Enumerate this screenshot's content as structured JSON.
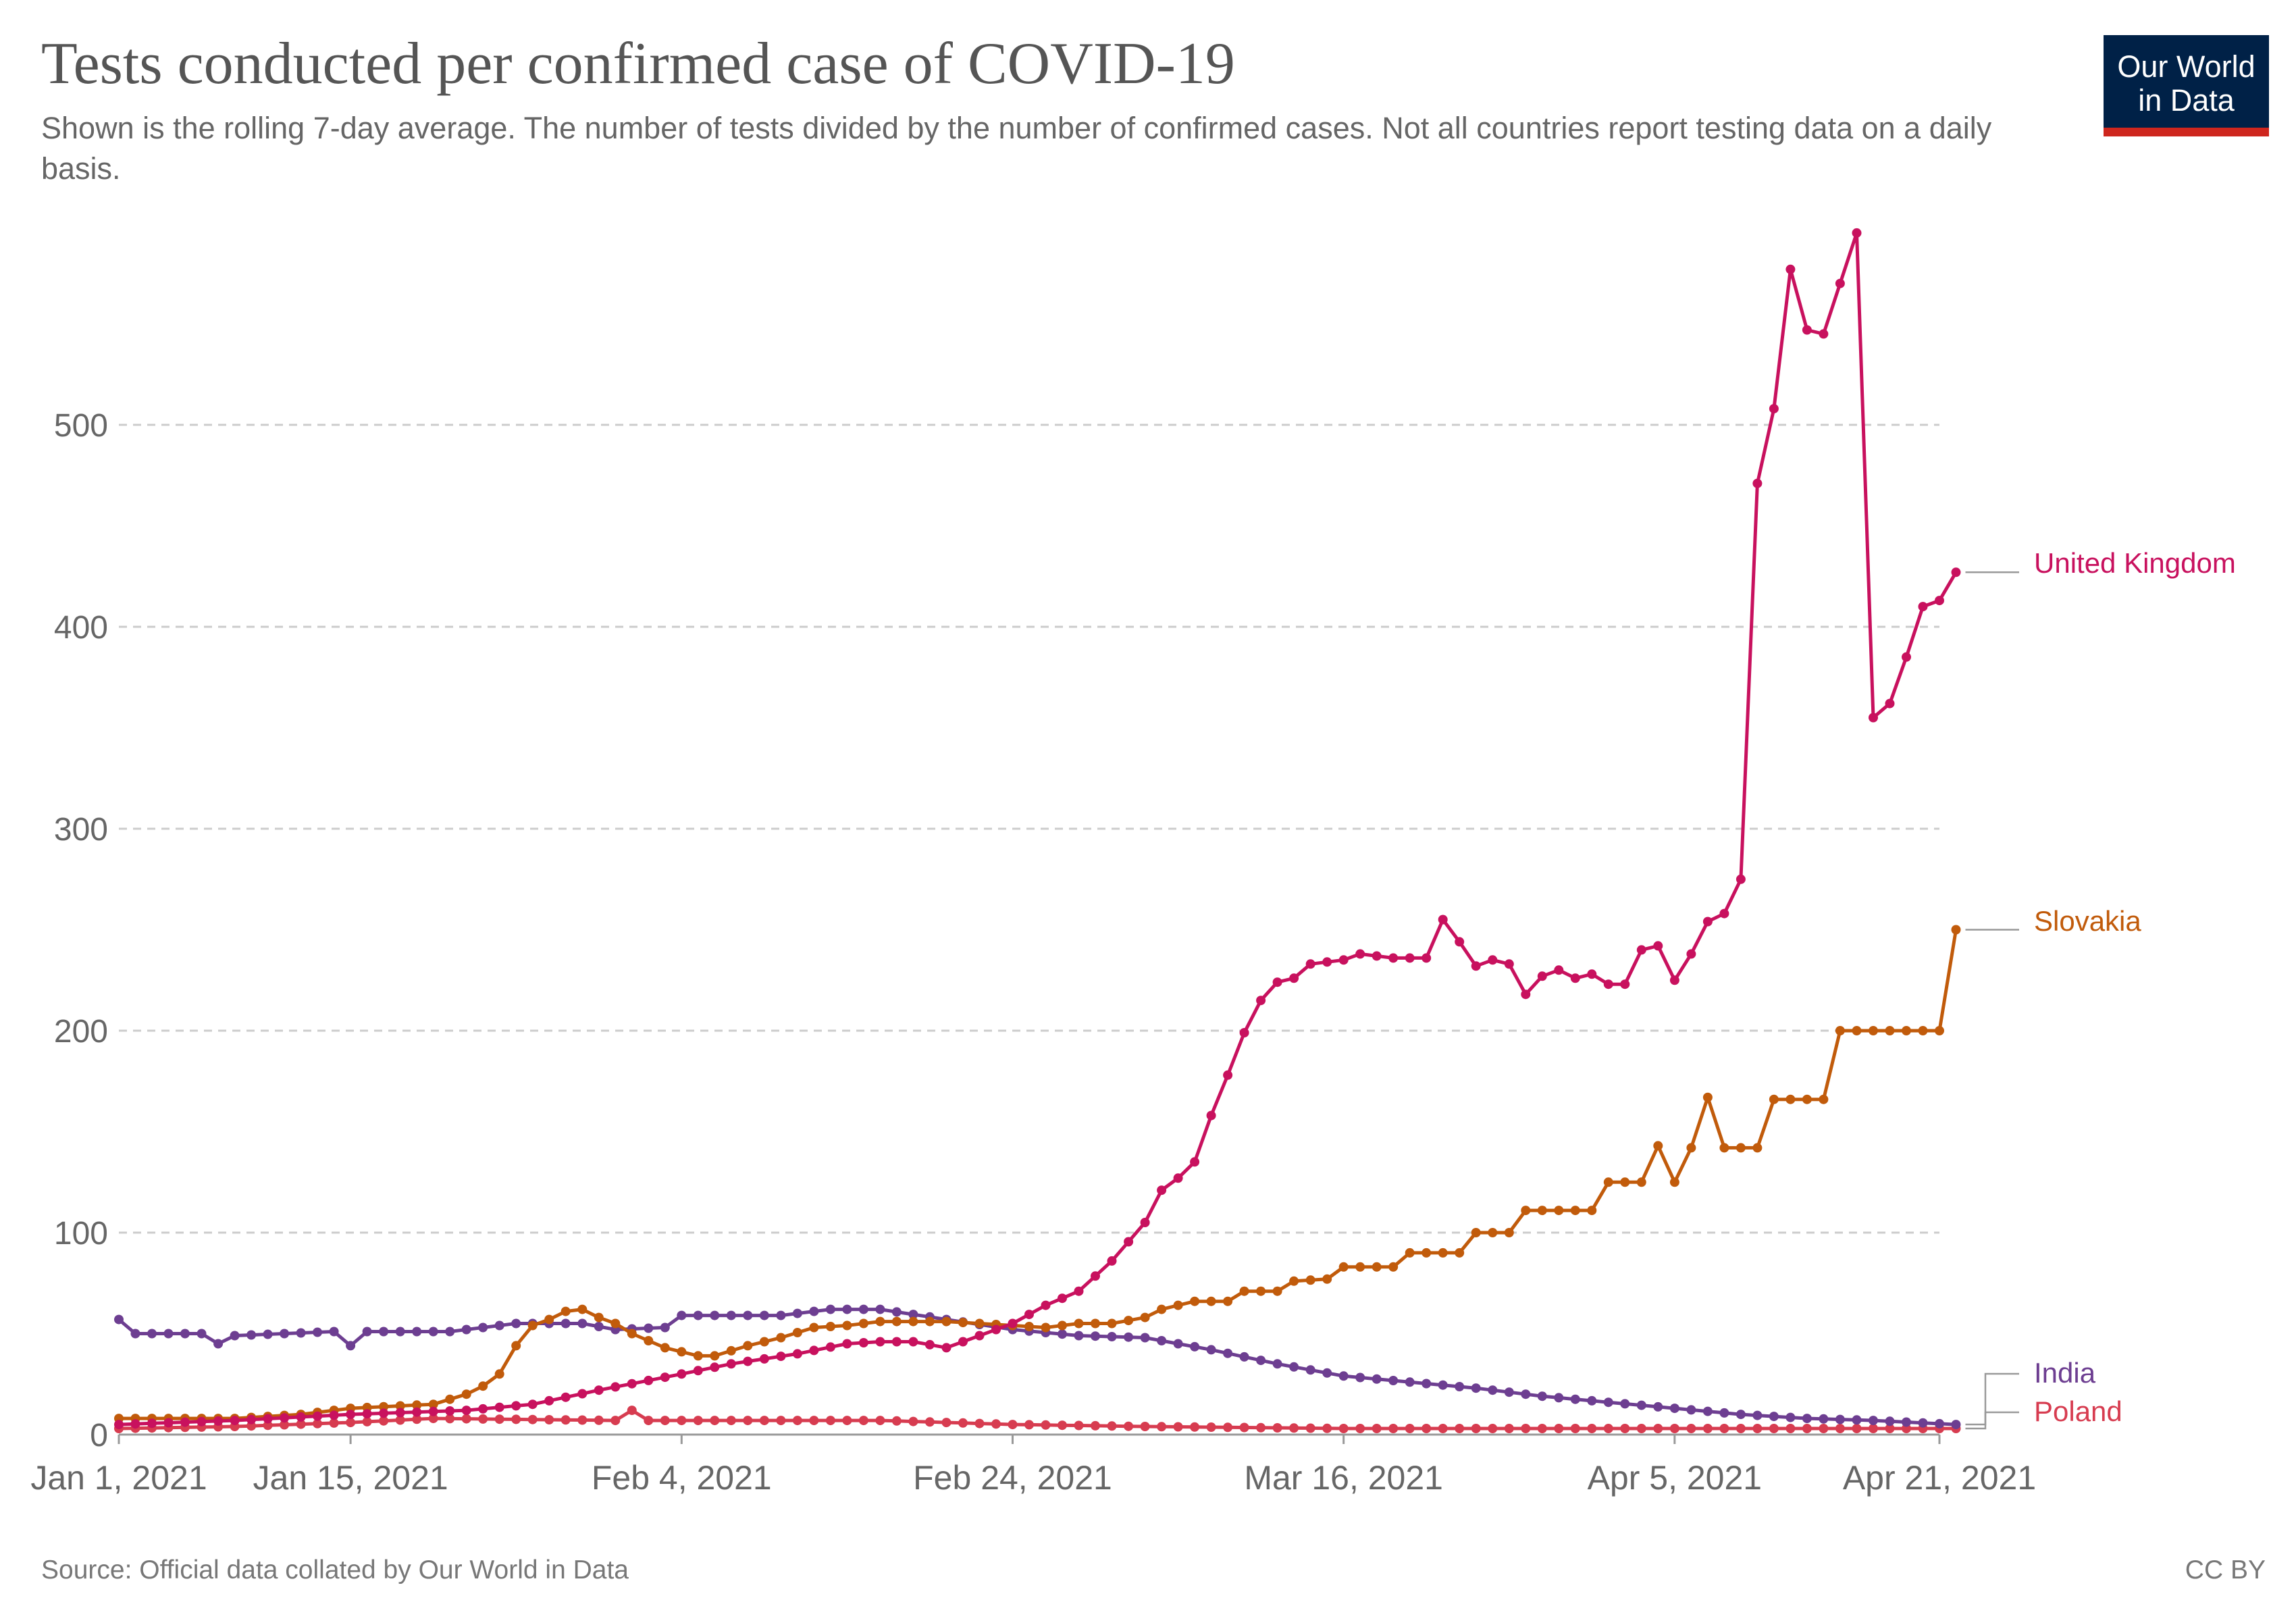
{
  "title": "Tests conducted per confirmed case of COVID-19",
  "subtitle": "Shown is the rolling 7-day average. The number of tests divided by the number of confirmed cases. Not all countries report testing data on a daily basis.",
  "logo": {
    "line1": "Our World",
    "line2": "in Data"
  },
  "source": "Source: Official data collated by Our World in Data",
  "license": "CC BY",
  "chart_data": {
    "type": "line",
    "x_start": "2021-01-01",
    "x_end": "2021-04-21",
    "ylim": [
      0,
      600
    ],
    "yticks": [
      0,
      100,
      200,
      300,
      400,
      500
    ],
    "ytick_labels": [
      "0",
      "100",
      "200",
      "300",
      "400",
      "500"
    ],
    "xticks": [
      {
        "date": "2021-01-01",
        "label": "Jan 1, 2021"
      },
      {
        "date": "2021-01-15",
        "label": "Jan 15, 2021"
      },
      {
        "date": "2021-02-04",
        "label": "Feb 4, 2021"
      },
      {
        "date": "2021-02-24",
        "label": "Feb 24, 2021"
      },
      {
        "date": "2021-03-16",
        "label": "Mar 16, 2021"
      },
      {
        "date": "2021-04-05",
        "label": "Apr 5, 2021"
      },
      {
        "date": "2021-04-21",
        "label": "Apr 21, 2021"
      }
    ],
    "grid": "horizontal-dashed",
    "legend": "right-end-labels",
    "series": [
      {
        "name": "United Kingdom",
        "color": "#c8115e",
        "points": [
          [
            "2021-01-01",
            5
          ],
          [
            "2021-01-08",
            7
          ],
          [
            "2021-01-15",
            10
          ],
          [
            "2021-01-22",
            12
          ],
          [
            "2021-01-26",
            15
          ],
          [
            "2021-01-30",
            22
          ],
          [
            "2021-02-04",
            30
          ],
          [
            "2021-02-07",
            35
          ],
          [
            "2021-02-11",
            40
          ],
          [
            "2021-02-14",
            45
          ],
          [
            "2021-02-16",
            46
          ],
          [
            "2021-02-18",
            46
          ],
          [
            "2021-02-20",
            43
          ],
          [
            "2021-02-22",
            49
          ],
          [
            "2021-02-24",
            55
          ],
          [
            "2021-02-26",
            64
          ],
          [
            "2021-02-28",
            71
          ],
          [
            "2021-03-02",
            86
          ],
          [
            "2021-03-04",
            105
          ],
          [
            "2021-03-05",
            121
          ],
          [
            "2021-03-06",
            127
          ],
          [
            "2021-03-07",
            135
          ],
          [
            "2021-03-08",
            158
          ],
          [
            "2021-03-09",
            178
          ],
          [
            "2021-03-10",
            199
          ],
          [
            "2021-03-11",
            215
          ],
          [
            "2021-03-12",
            224
          ],
          [
            "2021-03-13",
            226
          ],
          [
            "2021-03-14",
            233
          ],
          [
            "2021-03-16",
            235
          ],
          [
            "2021-03-17",
            238
          ],
          [
            "2021-03-19",
            236
          ],
          [
            "2021-03-21",
            236
          ],
          [
            "2021-03-22",
            255
          ],
          [
            "2021-03-23",
            244
          ],
          [
            "2021-03-24",
            232
          ],
          [
            "2021-03-25",
            235
          ],
          [
            "2021-03-26",
            233
          ],
          [
            "2021-03-27",
            218
          ],
          [
            "2021-03-28",
            227
          ],
          [
            "2021-03-29",
            230
          ],
          [
            "2021-03-30",
            226
          ],
          [
            "2021-03-31",
            228
          ],
          [
            "2021-04-01",
            223
          ],
          [
            "2021-04-02",
            223
          ],
          [
            "2021-04-03",
            240
          ],
          [
            "2021-04-04",
            242
          ],
          [
            "2021-04-05",
            225
          ],
          [
            "2021-04-06",
            238
          ],
          [
            "2021-04-07",
            254
          ],
          [
            "2021-04-08",
            258
          ],
          [
            "2021-04-09",
            275
          ],
          [
            "2021-04-10",
            471
          ],
          [
            "2021-04-11",
            508
          ],
          [
            "2021-04-12",
            577
          ],
          [
            "2021-04-13",
            547
          ],
          [
            "2021-04-14",
            545
          ],
          [
            "2021-04-15",
            570
          ],
          [
            "2021-04-16",
            595
          ],
          [
            "2021-04-17",
            355
          ],
          [
            "2021-04-18",
            362
          ],
          [
            "2021-04-19",
            385
          ],
          [
            "2021-04-20",
            410
          ],
          [
            "2021-04-21",
            413
          ],
          [
            "2021-04-22",
            427
          ]
        ]
      },
      {
        "name": "Slovakia",
        "color": "#c15b0b",
        "points": [
          [
            "2021-01-01",
            8
          ],
          [
            "2021-01-08",
            8
          ],
          [
            "2021-01-12",
            10
          ],
          [
            "2021-01-15",
            13
          ],
          [
            "2021-01-20",
            15
          ],
          [
            "2021-01-22",
            20
          ],
          [
            "2021-01-23",
            24
          ],
          [
            "2021-01-24",
            30
          ],
          [
            "2021-01-25",
            44
          ],
          [
            "2021-01-26",
            54
          ],
          [
            "2021-01-27",
            57
          ],
          [
            "2021-01-28",
            61
          ],
          [
            "2021-01-29",
            62
          ],
          [
            "2021-01-30",
            58
          ],
          [
            "2021-01-31",
            55
          ],
          [
            "2021-02-01",
            50
          ],
          [
            "2021-02-03",
            43
          ],
          [
            "2021-02-05",
            39
          ],
          [
            "2021-02-06",
            39
          ],
          [
            "2021-02-08",
            44
          ],
          [
            "2021-02-10",
            48
          ],
          [
            "2021-02-12",
            53
          ],
          [
            "2021-02-14",
            54
          ],
          [
            "2021-02-16",
            56
          ],
          [
            "2021-02-20",
            56
          ],
          [
            "2021-02-24",
            54
          ],
          [
            "2021-02-26",
            53
          ],
          [
            "2021-02-28",
            55
          ],
          [
            "2021-03-02",
            55
          ],
          [
            "2021-03-04",
            58
          ],
          [
            "2021-03-05",
            62
          ],
          [
            "2021-03-07",
            66
          ],
          [
            "2021-03-09",
            66
          ],
          [
            "2021-03-10",
            71
          ],
          [
            "2021-03-12",
            71
          ],
          [
            "2021-03-13",
            76
          ],
          [
            "2021-03-15",
            77
          ],
          [
            "2021-03-16",
            83
          ],
          [
            "2021-03-19",
            83
          ],
          [
            "2021-03-20",
            90
          ],
          [
            "2021-03-23",
            90
          ],
          [
            "2021-03-24",
            100
          ],
          [
            "2021-03-26",
            100
          ],
          [
            "2021-03-27",
            111
          ],
          [
            "2021-03-31",
            111
          ],
          [
            "2021-04-01",
            125
          ],
          [
            "2021-04-03",
            125
          ],
          [
            "2021-04-04",
            143
          ],
          [
            "2021-04-05",
            125
          ],
          [
            "2021-04-06",
            142
          ],
          [
            "2021-04-07",
            167
          ],
          [
            "2021-04-08",
            142
          ],
          [
            "2021-04-10",
            142
          ],
          [
            "2021-04-11",
            166
          ],
          [
            "2021-04-14",
            166
          ],
          [
            "2021-04-15",
            200
          ],
          [
            "2021-04-21",
            200
          ],
          [
            "2021-04-22",
            250
          ]
        ]
      },
      {
        "name": "India",
        "color": "#6d3e91",
        "points": [
          [
            "2021-01-01",
            57
          ],
          [
            "2021-01-02",
            50
          ],
          [
            "2021-01-06",
            50
          ],
          [
            "2021-01-07",
            45
          ],
          [
            "2021-01-08",
            49
          ],
          [
            "2021-01-14",
            51
          ],
          [
            "2021-01-15",
            44
          ],
          [
            "2021-01-16",
            51
          ],
          [
            "2021-01-21",
            51
          ],
          [
            "2021-01-25",
            55
          ],
          [
            "2021-01-29",
            55
          ],
          [
            "2021-01-31",
            52
          ],
          [
            "2021-02-03",
            53
          ],
          [
            "2021-02-04",
            59
          ],
          [
            "2021-02-10",
            59
          ],
          [
            "2021-02-13",
            62
          ],
          [
            "2021-02-16",
            62
          ],
          [
            "2021-02-20",
            57
          ],
          [
            "2021-02-24",
            52
          ],
          [
            "2021-02-28",
            49
          ],
          [
            "2021-03-04",
            48
          ],
          [
            "2021-03-08",
            42
          ],
          [
            "2021-03-12",
            35
          ],
          [
            "2021-03-16",
            29
          ],
          [
            "2021-03-20",
            26
          ],
          [
            "2021-03-24",
            23
          ],
          [
            "2021-03-28",
            19
          ],
          [
            "2021-04-01",
            16
          ],
          [
            "2021-04-05",
            13
          ],
          [
            "2021-04-09",
            10
          ],
          [
            "2021-04-13",
            8
          ],
          [
            "2021-04-17",
            7
          ],
          [
            "2021-04-22",
            5
          ]
        ]
      },
      {
        "name": "Poland",
        "color": "#d73c50",
        "points": [
          [
            "2021-01-01",
            3
          ],
          [
            "2021-01-08",
            4
          ],
          [
            "2021-01-15",
            6
          ],
          [
            "2021-01-20",
            8
          ],
          [
            "2021-01-31",
            7
          ],
          [
            "2021-02-01",
            12
          ],
          [
            "2021-02-02",
            7
          ],
          [
            "2021-02-16",
            7
          ],
          [
            "2021-02-24",
            5
          ],
          [
            "2021-03-04",
            4
          ],
          [
            "2021-03-16",
            3
          ],
          [
            "2021-04-22",
            3
          ]
        ]
      }
    ]
  }
}
